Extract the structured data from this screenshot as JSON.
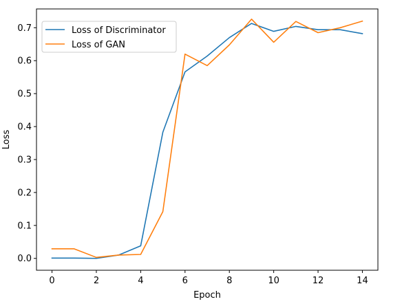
{
  "chart_data": {
    "type": "line",
    "title": "",
    "xlabel": "Epoch",
    "ylabel": "Loss",
    "xlim": [
      -0.7,
      14.7
    ],
    "ylim": [
      -0.036,
      0.757
    ],
    "xticks": [
      0,
      2,
      4,
      6,
      8,
      10,
      12,
      14
    ],
    "yticks": [
      0.0,
      0.1,
      0.2,
      0.3,
      0.4,
      0.5,
      0.6,
      0.7
    ],
    "ytick_labels": [
      "0.0",
      "0.1",
      "0.2",
      "0.3",
      "0.4",
      "0.5",
      "0.6",
      "0.7"
    ],
    "grid": false,
    "legend_position": "top-left",
    "x": [
      0,
      1,
      2,
      3,
      4,
      5,
      6,
      7,
      8,
      9,
      10,
      11,
      12,
      13,
      14
    ],
    "series": [
      {
        "name": "Loss of Discriminator",
        "color": "#1f77b4",
        "values": [
          0.001,
          0.001,
          0.0,
          0.01,
          0.038,
          0.383,
          0.566,
          0.614,
          0.67,
          0.713,
          0.689,
          0.704,
          0.694,
          0.694,
          0.682
        ]
      },
      {
        "name": "Loss of GAN",
        "color": "#ff7f0e",
        "values": [
          0.029,
          0.029,
          0.003,
          0.01,
          0.012,
          0.142,
          0.62,
          0.585,
          0.648,
          0.726,
          0.656,
          0.719,
          0.685,
          0.7,
          0.72
        ]
      }
    ]
  }
}
